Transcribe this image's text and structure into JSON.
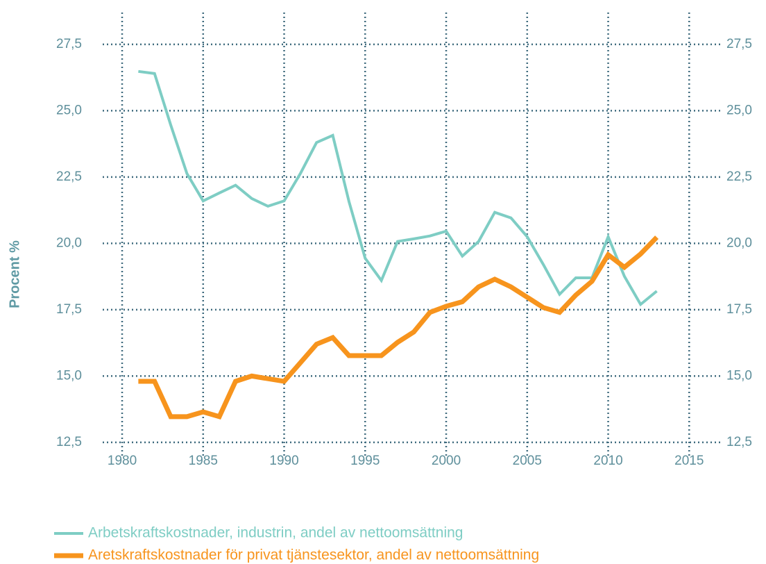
{
  "chart_data": {
    "type": "line",
    "y_label": "Procent %",
    "x": [
      1981,
      1982,
      1983,
      1984,
      1985,
      1986,
      1987,
      1988,
      1989,
      1990,
      1991,
      1992,
      1993,
      1994,
      1995,
      1996,
      1997,
      1998,
      1999,
      2000,
      2001,
      2002,
      2003,
      2004,
      2005,
      2006,
      2007,
      2008,
      2009,
      2010,
      2011,
      2012,
      2013
    ],
    "series": [
      {
        "name": "Arbetskraftskostnader, industrin, andel av nettoomsättning",
        "color": "#7ecdc4",
        "width": 4,
        "values": [
          26.48,
          26.4,
          24.46,
          22.63,
          21.6,
          21.9,
          22.19,
          21.69,
          21.4,
          21.6,
          22.63,
          23.8,
          24.07,
          21.58,
          19.44,
          18.6,
          20.07,
          20.17,
          20.28,
          20.46,
          19.52,
          20.07,
          21.17,
          20.96,
          20.25,
          19.2,
          18.08,
          18.7,
          18.7,
          20.25,
          18.76,
          17.7,
          18.2
        ]
      },
      {
        "name": "Aretskraftskostnader för privat tjänstesektor, andel av nettoomsättning",
        "color": "#f7941d",
        "width": 7,
        "values": [
          14.8,
          14.8,
          13.47,
          13.47,
          13.65,
          13.47,
          14.8,
          15.0,
          14.9,
          14.8,
          15.5,
          16.2,
          16.45,
          15.77,
          15.77,
          15.77,
          16.27,
          16.66,
          17.4,
          17.63,
          17.8,
          18.36,
          18.65,
          18.36,
          17.97,
          17.58,
          17.4,
          18.05,
          18.57,
          19.57,
          19.1,
          19.6,
          20.23
        ]
      }
    ],
    "xlim": [
      1978.8,
      2017
    ],
    "xticks": [
      1980,
      1985,
      1990,
      1995,
      2000,
      2005,
      2010,
      2015
    ],
    "ylim": [
      12,
      28.7
    ],
    "yticks": [
      {
        "value": 12.5,
        "label": "12,5"
      },
      {
        "value": 15,
        "label": "15,0"
      },
      {
        "value": 17.5,
        "label": "17,5"
      },
      {
        "value": 20,
        "label": "20,0"
      },
      {
        "value": 22.5,
        "label": "22,5"
      },
      {
        "value": 25,
        "label": "25,0"
      },
      {
        "value": 27.5,
        "label": "27,5"
      }
    ],
    "grid": true,
    "legend": "bottom"
  }
}
